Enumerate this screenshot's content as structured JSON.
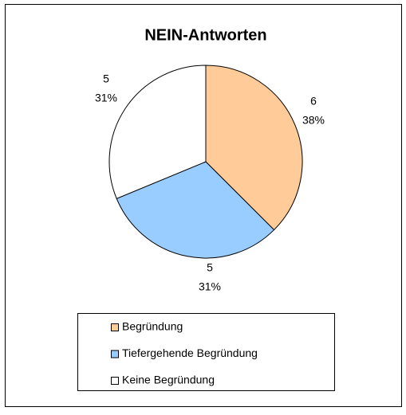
{
  "chart_data": {
    "type": "pie",
    "title": "NEIN-Antworten",
    "categories": [
      "Begründung",
      "Tiefergehende Begründung",
      "Keine Begründung"
    ],
    "values": [
      6,
      5,
      5
    ],
    "percent_labels": [
      "38%",
      "31%",
      "31%"
    ],
    "colors": [
      "#FFCC99",
      "#99CCFF",
      "#FFFFFF"
    ],
    "legend": "bottom"
  }
}
